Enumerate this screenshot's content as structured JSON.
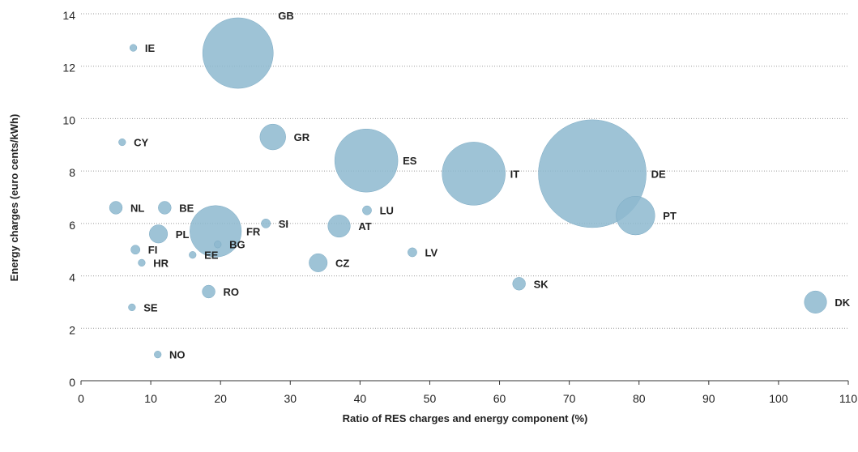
{
  "chart_data": {
    "type": "scatter",
    "subtype": "bubble",
    "title": "",
    "xlabel": "Ratio of RES charges and energy component (%)",
    "ylabel": "Energy charges (euro cents/kWh)",
    "xlim": [
      0,
      110
    ],
    "ylim": [
      0,
      14
    ],
    "xticks": [
      "0",
      "10",
      "20",
      "30",
      "40",
      "50",
      "60",
      "70",
      "80",
      "90",
      "100",
      "110"
    ],
    "yticks": [
      "0",
      "2",
      "4",
      "6",
      "8",
      "10",
      "12",
      "14"
    ],
    "grid": "horizontal dotted",
    "bubble_color": "#8db8cf",
    "points": [
      {
        "label": "IE",
        "x": 7.5,
        "y": 12.7,
        "size": 0.3
      },
      {
        "label": "GB",
        "x": 22.5,
        "y": 12.5,
        "size": 30
      },
      {
        "label": "CY",
        "x": 5.9,
        "y": 9.1,
        "size": 0.3
      },
      {
        "label": "GR",
        "x": 27.5,
        "y": 9.3,
        "size": 4
      },
      {
        "label": "ES",
        "x": 40.9,
        "y": 8.4,
        "size": 24
      },
      {
        "label": "IT",
        "x": 56.3,
        "y": 7.9,
        "size": 24
      },
      {
        "label": "DE",
        "x": 73.3,
        "y": 7.9,
        "size": 70
      },
      {
        "label": "NL",
        "x": 5.0,
        "y": 6.6,
        "size": 1
      },
      {
        "label": "BE",
        "x": 12.0,
        "y": 6.6,
        "size": 1
      },
      {
        "label": "LU",
        "x": 41.0,
        "y": 6.5,
        "size": 0.5
      },
      {
        "label": "PT",
        "x": 79.5,
        "y": 6.3,
        "size": 9
      },
      {
        "label": "SI",
        "x": 26.5,
        "y": 6.0,
        "size": 0.5
      },
      {
        "label": "AT",
        "x": 37.0,
        "y": 5.9,
        "size": 3
      },
      {
        "label": "FR",
        "x": 19.3,
        "y": 5.7,
        "size": 16
      },
      {
        "label": "PL",
        "x": 11.1,
        "y": 5.6,
        "size": 2
      },
      {
        "label": "BG",
        "x": 19.6,
        "y": 5.2,
        "size": 0.3
      },
      {
        "label": "FI",
        "x": 7.8,
        "y": 5.0,
        "size": 0.5
      },
      {
        "label": "EE",
        "x": 16.0,
        "y": 4.8,
        "size": 0.3
      },
      {
        "label": "LV",
        "x": 47.5,
        "y": 4.9,
        "size": 0.5
      },
      {
        "label": "HR",
        "x": 8.7,
        "y": 4.5,
        "size": 0.3
      },
      {
        "label": "CZ",
        "x": 34.0,
        "y": 4.5,
        "size": 2
      },
      {
        "label": "SK",
        "x": 62.8,
        "y": 3.7,
        "size": 1
      },
      {
        "label": "RO",
        "x": 18.3,
        "y": 3.4,
        "size": 1
      },
      {
        "label": "DK",
        "x": 105.3,
        "y": 3.0,
        "size": 3
      },
      {
        "label": "SE",
        "x": 7.3,
        "y": 2.8,
        "size": 0.3
      },
      {
        "label": "NO",
        "x": 11.0,
        "y": 1.0,
        "size": 0.3
      }
    ]
  }
}
